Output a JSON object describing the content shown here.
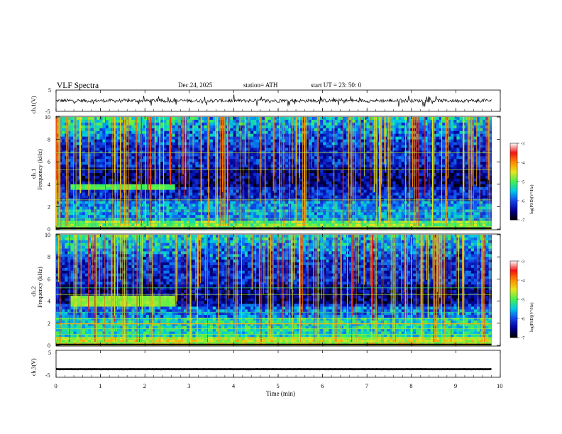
{
  "header": {
    "title": "VLF  Spectra",
    "date": "Dec.24, 2025",
    "station": "station= ATH",
    "start": "start  UT  =    23: 50: 0"
  },
  "panels": {
    "ch1_label": "ch.1(V)",
    "ch1_ymax": "5",
    "ch1_ymin": "-5",
    "spec1_label_a": "ch.1",
    "spec1_label_b": "Frequency  (kHz)",
    "spec2_label_a": "ch.2",
    "spec2_label_b": "Frequency  (kHz)",
    "ch3_label": "ch.3(V)",
    "ch3_ymax": "5",
    "ch3_ymin": "-5",
    "xlabel": "Time  (min)"
  },
  "colorbar": {
    "label": "log(PSD)(V²/Hz)",
    "ticks": [
      "-3",
      "-4",
      "-5",
      "-6",
      "-7"
    ],
    "colors": [
      "#ffffff",
      "#ff2020",
      "#ffd000",
      "#60ff40",
      "#00e0e0",
      "#2060ff",
      "#0000a0",
      "#000000"
    ]
  },
  "chart_data": [
    {
      "type": "line",
      "name": "ch.1 waveform",
      "ylabel": "ch.1(V)",
      "ylim": [
        -5,
        5
      ],
      "xlim": [
        0,
        10
      ],
      "x_end": 9.8,
      "baseline": 0
    },
    {
      "type": "heatmap",
      "name": "ch.1 spectrogram",
      "xlabel": "Time  (min)",
      "ylabel": "Frequency  (kHz)",
      "xlim": [
        0,
        10
      ],
      "ylim": [
        0,
        10
      ],
      "x_ticks": [
        "0",
        "1",
        "2",
        "3",
        "4",
        "5",
        "6",
        "7",
        "8",
        "9",
        "10"
      ],
      "y_ticks": [
        "0",
        "2",
        "4",
        "6",
        "8",
        "10"
      ],
      "data_end_min": 9.8,
      "colorbar_range": [
        -7,
        -3
      ],
      "features": [
        {
          "kind": "band",
          "t0": 0.35,
          "t1": 2.65,
          "f0": 3.5,
          "f1": 4.1,
          "level": -5
        }
      ]
    },
    {
      "type": "heatmap",
      "name": "ch.2 spectrogram",
      "xlabel": "Time  (min)",
      "ylabel": "Frequency  (kHz)",
      "xlim": [
        0,
        10
      ],
      "ylim": [
        0,
        10
      ],
      "x_ticks": [
        "0",
        "1",
        "2",
        "3",
        "4",
        "5",
        "6",
        "7",
        "8",
        "9",
        "10"
      ],
      "y_ticks": [
        "0",
        "2",
        "4",
        "6",
        "8",
        "10"
      ],
      "data_end_min": 9.8,
      "colorbar_range": [
        -7,
        -3
      ],
      "features": [
        {
          "kind": "band",
          "t0": 0.35,
          "t1": 2.65,
          "f0": 3.5,
          "f1": 4.4,
          "level": -4.8
        },
        {
          "kind": "line",
          "t0": 0.0,
          "t1": 9.8,
          "f": 1.95,
          "level": -4.2
        }
      ]
    },
    {
      "type": "line",
      "name": "ch.3 waveform",
      "ylabel": "ch.3(V)",
      "ylim": [
        -5,
        5
      ],
      "xlim": [
        0,
        10
      ],
      "x_end": 9.8,
      "baseline": -2
    }
  ]
}
